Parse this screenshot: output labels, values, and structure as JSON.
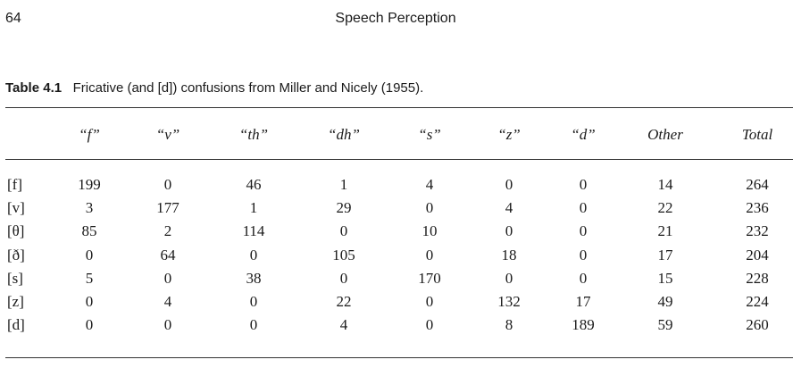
{
  "header": {
    "page_number": "64",
    "running_title": "Speech Perception"
  },
  "table": {
    "label": "Table 4.1",
    "caption": "Fricative (and [d]) confusions from Miller and Nicely (1955).",
    "columns": [
      "“f”",
      "“v”",
      "“th”",
      "“dh”",
      "“s”",
      "“z”",
      "“d”",
      "Other",
      "Total"
    ],
    "rows": [
      {
        "label": "[f]",
        "values": [
          199,
          0,
          46,
          1,
          4,
          0,
          0,
          14,
          264
        ]
      },
      {
        "label": "[v]",
        "values": [
          3,
          177,
          1,
          29,
          0,
          4,
          0,
          22,
          236
        ]
      },
      {
        "label": "[θ]",
        "values": [
          85,
          2,
          114,
          0,
          10,
          0,
          0,
          21,
          232
        ]
      },
      {
        "label": "[ð]",
        "values": [
          0,
          64,
          0,
          105,
          0,
          18,
          0,
          17,
          204
        ]
      },
      {
        "label": "[s]",
        "values": [
          5,
          0,
          38,
          0,
          170,
          0,
          0,
          15,
          228
        ]
      },
      {
        "label": "[z]",
        "values": [
          0,
          4,
          0,
          22,
          0,
          132,
          17,
          49,
          224
        ]
      },
      {
        "label": "[d]",
        "values": [
          0,
          0,
          0,
          4,
          0,
          8,
          189,
          59,
          260
        ]
      }
    ]
  }
}
